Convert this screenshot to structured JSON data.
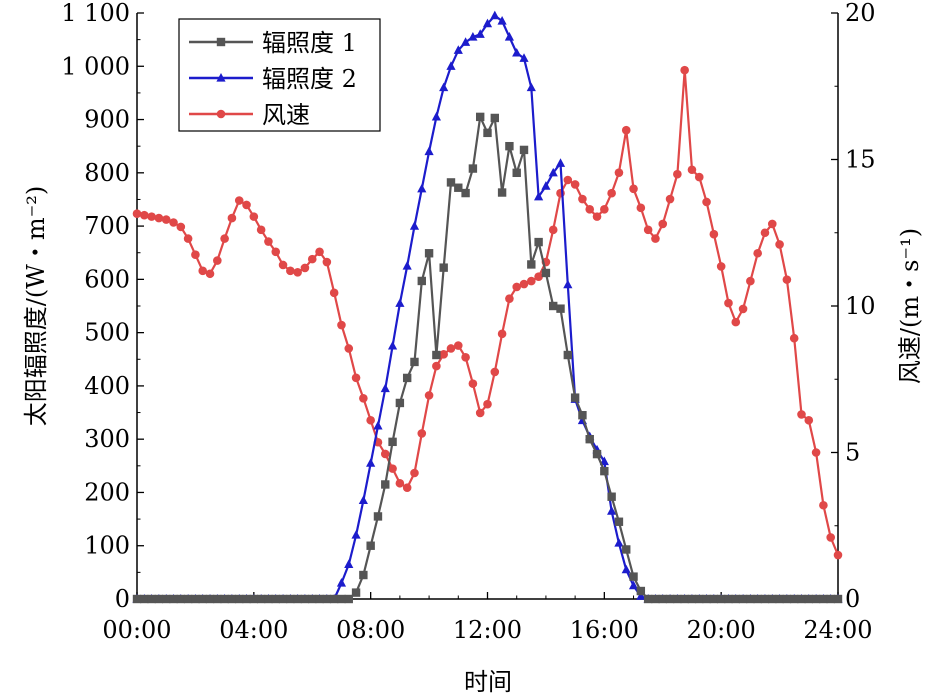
{
  "chart_data": {
    "type": "line",
    "title": "",
    "xlabel": "时间",
    "ylabel_left": "太阳辐照度/(W・m⁻²)",
    "ylabel_right": "风速/(m・s⁻¹)",
    "x_ticks": [
      "00:00",
      "04:00",
      "08:00",
      "12:00",
      "16:00",
      "20:00",
      "24:00"
    ],
    "y_left_ticks": [
      "0",
      "100",
      "200",
      "300",
      "400",
      "500",
      "600",
      "700",
      "800",
      "900",
      "1 000",
      "1 100"
    ],
    "y_right_ticks": [
      "0",
      "5",
      "10",
      "15",
      "20"
    ],
    "xlim": [
      0,
      24
    ],
    "ylim_left": [
      0,
      1100
    ],
    "ylim_right": [
      0,
      20
    ],
    "grid": false,
    "legend_position": "top-left",
    "series": [
      {
        "name": "辐照度 1",
        "axis": "left",
        "color": "#555555",
        "marker": "square",
        "points": [
          [
            0.0,
            0
          ],
          [
            0.25,
            0
          ],
          [
            0.5,
            0
          ],
          [
            0.75,
            0
          ],
          [
            1.0,
            0
          ],
          [
            1.25,
            0
          ],
          [
            1.5,
            0
          ],
          [
            1.75,
            0
          ],
          [
            2.0,
            0
          ],
          [
            2.25,
            0
          ],
          [
            2.5,
            0
          ],
          [
            2.75,
            0
          ],
          [
            3.0,
            0
          ],
          [
            3.25,
            0
          ],
          [
            3.5,
            0
          ],
          [
            3.75,
            0
          ],
          [
            4.0,
            0
          ],
          [
            4.25,
            0
          ],
          [
            4.5,
            0
          ],
          [
            4.75,
            0
          ],
          [
            5.0,
            0
          ],
          [
            5.25,
            0
          ],
          [
            5.5,
            0
          ],
          [
            5.75,
            0
          ],
          [
            6.0,
            0
          ],
          [
            6.25,
            0
          ],
          [
            6.5,
            0
          ],
          [
            6.75,
            0
          ],
          [
            7.0,
            0
          ],
          [
            7.25,
            0
          ],
          [
            7.5,
            12
          ],
          [
            7.75,
            45
          ],
          [
            8.0,
            100
          ],
          [
            8.25,
            155
          ],
          [
            8.5,
            215
          ],
          [
            8.75,
            295
          ],
          [
            9.0,
            368
          ],
          [
            9.25,
            415
          ],
          [
            9.5,
            445
          ],
          [
            9.75,
            597
          ],
          [
            10.0,
            649
          ],
          [
            10.25,
            458
          ],
          [
            10.5,
            622
          ],
          [
            10.75,
            782
          ],
          [
            11.0,
            772
          ],
          [
            11.25,
            762
          ],
          [
            11.5,
            808
          ],
          [
            11.75,
            905
          ],
          [
            12.0,
            875
          ],
          [
            12.25,
            903
          ],
          [
            12.5,
            763
          ],
          [
            12.75,
            850
          ],
          [
            13.0,
            800
          ],
          [
            13.25,
            843
          ],
          [
            13.5,
            628
          ],
          [
            13.75,
            670
          ],
          [
            14.0,
            612
          ],
          [
            14.25,
            550
          ],
          [
            14.5,
            545
          ],
          [
            14.75,
            458
          ],
          [
            15.0,
            378
          ],
          [
            15.25,
            345
          ],
          [
            15.5,
            300
          ],
          [
            15.75,
            272
          ],
          [
            16.0,
            240
          ],
          [
            16.25,
            192
          ],
          [
            16.5,
            145
          ],
          [
            16.75,
            93
          ],
          [
            17.0,
            42
          ],
          [
            17.25,
            15
          ],
          [
            17.5,
            0
          ],
          [
            17.75,
            0
          ],
          [
            18.0,
            0
          ],
          [
            18.25,
            0
          ],
          [
            18.5,
            0
          ],
          [
            18.75,
            0
          ],
          [
            19.0,
            0
          ],
          [
            19.25,
            0
          ],
          [
            19.5,
            0
          ],
          [
            19.75,
            0
          ],
          [
            20.0,
            0
          ],
          [
            20.25,
            0
          ],
          [
            20.5,
            0
          ],
          [
            20.75,
            0
          ],
          [
            21.0,
            0
          ],
          [
            21.25,
            0
          ],
          [
            21.5,
            0
          ],
          [
            21.75,
            0
          ],
          [
            22.0,
            0
          ],
          [
            22.25,
            0
          ],
          [
            22.5,
            0
          ],
          [
            22.75,
            0
          ],
          [
            23.0,
            0
          ],
          [
            23.25,
            0
          ],
          [
            23.5,
            0
          ],
          [
            23.75,
            0
          ],
          [
            24.0,
            0
          ]
        ]
      },
      {
        "name": "辐照度 2",
        "axis": "left",
        "color": "#1c1ccc",
        "marker": "triangle",
        "points": [
          [
            0.0,
            0
          ],
          [
            0.25,
            0
          ],
          [
            0.5,
            0
          ],
          [
            0.75,
            0
          ],
          [
            1.0,
            0
          ],
          [
            1.25,
            0
          ],
          [
            1.5,
            0
          ],
          [
            1.75,
            0
          ],
          [
            2.0,
            0
          ],
          [
            2.25,
            0
          ],
          [
            2.5,
            0
          ],
          [
            2.75,
            0
          ],
          [
            3.0,
            0
          ],
          [
            3.25,
            0
          ],
          [
            3.5,
            0
          ],
          [
            3.75,
            0
          ],
          [
            4.0,
            0
          ],
          [
            4.25,
            0
          ],
          [
            4.5,
            0
          ],
          [
            4.75,
            0
          ],
          [
            5.0,
            0
          ],
          [
            5.25,
            0
          ],
          [
            5.5,
            0
          ],
          [
            5.75,
            0
          ],
          [
            6.0,
            0
          ],
          [
            6.25,
            0
          ],
          [
            6.5,
            0
          ],
          [
            6.75,
            0
          ],
          [
            7.0,
            30
          ],
          [
            7.25,
            65
          ],
          [
            7.5,
            120
          ],
          [
            7.75,
            185
          ],
          [
            8.0,
            255
          ],
          [
            8.25,
            325
          ],
          [
            8.5,
            395
          ],
          [
            8.75,
            475
          ],
          [
            9.0,
            555
          ],
          [
            9.25,
            625
          ],
          [
            9.5,
            700
          ],
          [
            9.75,
            770
          ],
          [
            10.0,
            840
          ],
          [
            10.25,
            905
          ],
          [
            10.5,
            960
          ],
          [
            10.75,
            1000
          ],
          [
            11.0,
            1030
          ],
          [
            11.25,
            1045
          ],
          [
            11.5,
            1055
          ],
          [
            11.75,
            1060
          ],
          [
            12.0,
            1080
          ],
          [
            12.25,
            1095
          ],
          [
            12.5,
            1085
          ],
          [
            12.75,
            1055
          ],
          [
            13.0,
            1025
          ],
          [
            13.25,
            1015
          ],
          [
            13.5,
            960
          ],
          [
            13.75,
            755
          ],
          [
            14.0,
            775
          ],
          [
            14.25,
            800
          ],
          [
            14.5,
            818
          ],
          [
            14.75,
            590
          ],
          [
            15.0,
            375
          ],
          [
            15.25,
            335
          ],
          [
            15.5,
            305
          ],
          [
            15.75,
            280
          ],
          [
            16.0,
            258
          ],
          [
            16.25,
            165
          ],
          [
            16.5,
            105
          ],
          [
            16.75,
            55
          ],
          [
            17.0,
            25
          ],
          [
            17.25,
            5
          ],
          [
            17.5,
            0
          ],
          [
            17.75,
            0
          ],
          [
            18.0,
            0
          ],
          [
            18.25,
            0
          ],
          [
            18.5,
            0
          ],
          [
            18.75,
            0
          ],
          [
            19.0,
            0
          ],
          [
            19.25,
            0
          ],
          [
            19.5,
            0
          ],
          [
            19.75,
            0
          ],
          [
            20.0,
            0
          ],
          [
            20.25,
            0
          ],
          [
            20.5,
            0
          ],
          [
            20.75,
            0
          ],
          [
            21.0,
            0
          ],
          [
            21.25,
            0
          ],
          [
            21.5,
            0
          ],
          [
            21.75,
            0
          ],
          [
            22.0,
            0
          ],
          [
            22.25,
            0
          ],
          [
            22.5,
            0
          ],
          [
            22.75,
            0
          ],
          [
            23.0,
            0
          ],
          [
            23.25,
            0
          ],
          [
            23.5,
            0
          ],
          [
            23.75,
            0
          ],
          [
            24.0,
            0
          ]
        ]
      },
      {
        "name": "风速",
        "axis": "right",
        "color": "#e04848",
        "marker": "circle",
        "points": [
          [
            0.0,
            13.15
          ],
          [
            0.25,
            13.1
          ],
          [
            0.5,
            13.05
          ],
          [
            0.75,
            13.0
          ],
          [
            1.0,
            12.95
          ],
          [
            1.25,
            12.85
          ],
          [
            1.5,
            12.7
          ],
          [
            1.75,
            12.3
          ],
          [
            2.0,
            11.75
          ],
          [
            2.25,
            11.2
          ],
          [
            2.5,
            11.1
          ],
          [
            2.75,
            11.55
          ],
          [
            3.0,
            12.3
          ],
          [
            3.25,
            13.0
          ],
          [
            3.5,
            13.6
          ],
          [
            3.75,
            13.45
          ],
          [
            4.0,
            13.05
          ],
          [
            4.25,
            12.6
          ],
          [
            4.5,
            12.2
          ],
          [
            4.75,
            11.85
          ],
          [
            5.0,
            11.4
          ],
          [
            5.25,
            11.2
          ],
          [
            5.5,
            11.15
          ],
          [
            5.75,
            11.3
          ],
          [
            6.0,
            11.6
          ],
          [
            6.25,
            11.85
          ],
          [
            6.5,
            11.5
          ],
          [
            6.75,
            10.45
          ],
          [
            7.0,
            9.35
          ],
          [
            7.25,
            8.55
          ],
          [
            7.5,
            7.55
          ],
          [
            7.75,
            6.85
          ],
          [
            8.0,
            6.1
          ],
          [
            8.25,
            5.35
          ],
          [
            8.5,
            4.95
          ],
          [
            8.75,
            4.45
          ],
          [
            9.0,
            3.95
          ],
          [
            9.25,
            3.8
          ],
          [
            9.5,
            4.3
          ],
          [
            9.75,
            5.65
          ],
          [
            10.0,
            6.95
          ],
          [
            10.25,
            7.95
          ],
          [
            10.5,
            8.35
          ],
          [
            10.75,
            8.55
          ],
          [
            11.0,
            8.65
          ],
          [
            11.25,
            8.25
          ],
          [
            11.5,
            7.35
          ],
          [
            11.75,
            6.35
          ],
          [
            12.0,
            6.65
          ],
          [
            12.25,
            7.75
          ],
          [
            12.5,
            9.05
          ],
          [
            12.75,
            10.25
          ],
          [
            13.0,
            10.65
          ],
          [
            13.25,
            10.75
          ],
          [
            13.5,
            10.85
          ],
          [
            13.75,
            11.0
          ],
          [
            14.0,
            11.5
          ],
          [
            14.25,
            12.6
          ],
          [
            14.5,
            13.85
          ],
          [
            14.75,
            14.3
          ],
          [
            15.0,
            14.15
          ],
          [
            15.25,
            13.65
          ],
          [
            15.5,
            13.3
          ],
          [
            15.75,
            13.05
          ],
          [
            16.0,
            13.3
          ],
          [
            16.25,
            13.85
          ],
          [
            16.5,
            14.55
          ],
          [
            16.75,
            16.0
          ],
          [
            17.0,
            14.0
          ],
          [
            17.25,
            13.35
          ],
          [
            17.5,
            12.6
          ],
          [
            17.75,
            12.3
          ],
          [
            18.0,
            12.8
          ],
          [
            18.25,
            13.65
          ],
          [
            18.5,
            14.5
          ],
          [
            18.75,
            18.05
          ],
          [
            19.0,
            14.65
          ],
          [
            19.25,
            14.4
          ],
          [
            19.5,
            13.55
          ],
          [
            19.75,
            12.45
          ],
          [
            20.0,
            11.35
          ],
          [
            20.25,
            10.1
          ],
          [
            20.5,
            9.45
          ],
          [
            20.75,
            9.9
          ],
          [
            21.0,
            10.85
          ],
          [
            21.25,
            11.8
          ],
          [
            21.5,
            12.5
          ],
          [
            21.75,
            12.8
          ],
          [
            22.0,
            12.1
          ],
          [
            22.25,
            10.9
          ],
          [
            22.5,
            8.9
          ],
          [
            22.75,
            6.3
          ],
          [
            23.0,
            6.1
          ],
          [
            23.25,
            5.0
          ],
          [
            23.5,
            3.2
          ],
          [
            23.75,
            2.1
          ],
          [
            24.0,
            1.5
          ]
        ]
      }
    ]
  }
}
